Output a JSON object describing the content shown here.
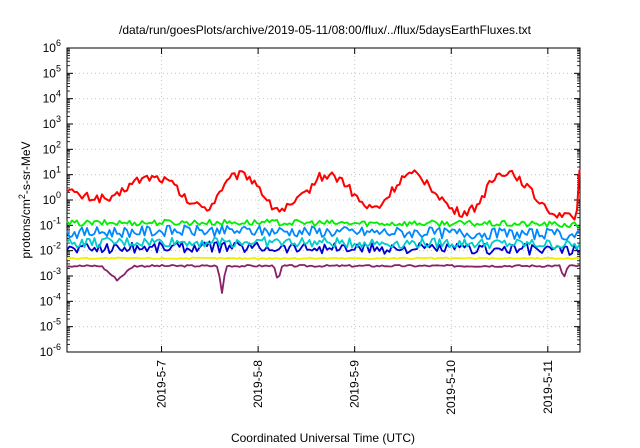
{
  "chart_data": {
    "type": "line",
    "title": "/data/run/goesPlots/archive/2019-05-11/08:00/flux/../flux/5daysEarthFluxes.txt",
    "xlabel": "Coordinated Universal Time (UTC)",
    "ylabel": {
      "prefix": "protons/cm",
      "superscript": "2",
      "suffix": "-s-sr-MeV"
    },
    "yscale": "log",
    "ylim": [
      1e-06,
      1000000.0
    ],
    "y_ticks": [
      {
        "mantissa": "10",
        "exponent": "-6",
        "value": 1e-06
      },
      {
        "mantissa": "10",
        "exponent": "-5",
        "value": 1e-05
      },
      {
        "mantissa": "10",
        "exponent": "-4",
        "value": 0.0001
      },
      {
        "mantissa": "10",
        "exponent": "-3",
        "value": 0.001
      },
      {
        "mantissa": "10",
        "exponent": "-2",
        "value": 0.01
      },
      {
        "mantissa": "10",
        "exponent": "-1",
        "value": 0.1
      },
      {
        "mantissa": "10",
        "exponent": "0",
        "value": 1
      },
      {
        "mantissa": "10",
        "exponent": "1",
        "value": 10
      },
      {
        "mantissa": "10",
        "exponent": "2",
        "value": 100
      },
      {
        "mantissa": "10",
        "exponent": "3",
        "value": 1000
      },
      {
        "mantissa": "10",
        "exponent": "4",
        "value": 10000
      },
      {
        "mantissa": "10",
        "exponent": "5",
        "value": 100000
      },
      {
        "mantissa": "10",
        "exponent": "6",
        "value": 1000000
      }
    ],
    "xlim": [
      "2019-05-06 00:30",
      "2019-05-11 08:00"
    ],
    "x_ticks": [
      "2019-5-7",
      "2019-5-8",
      "2019-5-9",
      "2019-5-10",
      "2019-5-11"
    ],
    "grid": true,
    "series": [
      {
        "color": "#ff0000",
        "x": [
          "2019-05-06 00:30",
          "2019-05-06 03:00",
          "2019-05-06 06:00",
          "2019-05-06 09:00",
          "2019-05-06 12:00",
          "2019-05-06 15:00",
          "2019-05-06 18:00",
          "2019-05-06 21:00",
          "2019-05-07 00:00",
          "2019-05-07 03:00",
          "2019-05-07 06:00",
          "2019-05-07 09:00",
          "2019-05-07 12:00",
          "2019-05-07 15:00",
          "2019-05-07 18:00",
          "2019-05-07 21:00",
          "2019-05-08 00:00",
          "2019-05-08 03:00",
          "2019-05-08 06:00",
          "2019-05-08 09:00",
          "2019-05-08 12:00",
          "2019-05-08 15:00",
          "2019-05-08 18:00",
          "2019-05-08 21:00",
          "2019-05-09 00:00",
          "2019-05-09 03:00",
          "2019-05-09 06:00",
          "2019-05-09 09:00",
          "2019-05-09 12:00",
          "2019-05-09 15:00",
          "2019-05-09 18:00",
          "2019-05-09 21:00",
          "2019-05-10 00:00",
          "2019-05-10 03:00",
          "2019-05-10 06:00",
          "2019-05-10 09:00",
          "2019-05-10 12:00",
          "2019-05-10 15:00",
          "2019-05-10 18:00",
          "2019-05-10 21:00",
          "2019-05-11 00:00",
          "2019-05-11 01:30",
          "2019-05-11 03:00",
          "2019-05-11 04:30",
          "2019-05-11 06:00",
          "2019-05-11 07:00",
          "2019-05-11 07:30",
          "2019-05-11 08:00"
        ],
        "values": [
          3,
          1.5,
          1.3,
          1.2,
          1.0,
          3.0,
          6,
          8,
          7,
          4,
          1.0,
          0.6,
          0.5,
          3,
          9,
          10,
          4,
          0.6,
          0.4,
          0.7,
          2,
          8,
          10,
          6,
          1.5,
          0.5,
          0.5,
          2,
          8,
          10,
          5,
          1.5,
          0.4,
          0.3,
          0.5,
          3,
          12,
          13,
          5,
          1.2,
          0.5,
          0.3,
          0.25,
          0.4,
          0.15,
          0.15,
          0.5,
          50
        ]
      },
      {
        "color": "#00ee00",
        "x": [
          "2019-05-06 00:30",
          "2019-05-07 00:00",
          "2019-05-08 00:00",
          "2019-05-09 00:00",
          "2019-05-10 00:00",
          "2019-05-11 00:00",
          "2019-05-11 08:00"
        ],
        "values": [
          0.12,
          0.13,
          0.13,
          0.12,
          0.12,
          0.11,
          0.1
        ]
      },
      {
        "color": "#0088ff",
        "x": [
          "2019-05-06 00:30",
          "2019-05-07 00:00",
          "2019-05-08 00:00",
          "2019-05-09 00:00",
          "2019-05-10 00:00",
          "2019-05-11 00:00",
          "2019-05-11 08:00"
        ],
        "values": [
          0.05,
          0.06,
          0.06,
          0.055,
          0.05,
          0.045,
          0.04
        ]
      },
      {
        "color": "#00cccc",
        "x": [
          "2019-05-06 00:30",
          "2019-05-07 00:00",
          "2019-05-08 00:00",
          "2019-05-09 00:00",
          "2019-05-10 00:00",
          "2019-05-11 00:00",
          "2019-05-11 08:00"
        ],
        "values": [
          0.02,
          0.022,
          0.022,
          0.02,
          0.02,
          0.018,
          0.016
        ]
      },
      {
        "color": "#0000cc",
        "x": [
          "2019-05-06 00:30",
          "2019-05-07 00:00",
          "2019-05-08 00:00",
          "2019-05-09 00:00",
          "2019-05-10 00:00",
          "2019-05-11 00:00",
          "2019-05-11 08:00"
        ],
        "values": [
          0.012,
          0.014,
          0.014,
          0.012,
          0.012,
          0.011,
          0.01
        ]
      },
      {
        "color": "#eeee00",
        "x": [
          "2019-05-06 00:30",
          "2019-05-07 00:00",
          "2019-05-08 00:00",
          "2019-05-09 00:00",
          "2019-05-10 00:00",
          "2019-05-11 00:00",
          "2019-05-11 08:00"
        ],
        "values": [
          0.005,
          0.005,
          0.005,
          0.005,
          0.005,
          0.005,
          0.005
        ]
      },
      {
        "color": "#882266",
        "x": [
          "2019-05-06 00:30",
          "2019-05-06 09:00",
          "2019-05-06 13:00",
          "2019-05-06 17:00",
          "2019-05-07 00:00",
          "2019-05-07 14:00",
          "2019-05-07 15:00",
          "2019-05-07 16:00",
          "2019-05-08 00:00",
          "2019-05-08 04:00",
          "2019-05-08 05:00",
          "2019-05-08 06:00",
          "2019-05-09 00:00",
          "2019-05-10 00:00",
          "2019-05-10 12:00",
          "2019-05-11 00:00",
          "2019-05-11 03:00",
          "2019-05-11 04:00",
          "2019-05-11 05:00",
          "2019-05-11 08:00"
        ],
        "values": [
          0.0025,
          0.0025,
          0.0007,
          0.0025,
          0.0025,
          0.0025,
          0.0002,
          0.0025,
          0.0025,
          0.0025,
          0.0006,
          0.0025,
          0.0025,
          0.0025,
          0.0025,
          0.0025,
          0.0025,
          0.0008,
          0.0025,
          0.0025
        ]
      }
    ]
  }
}
